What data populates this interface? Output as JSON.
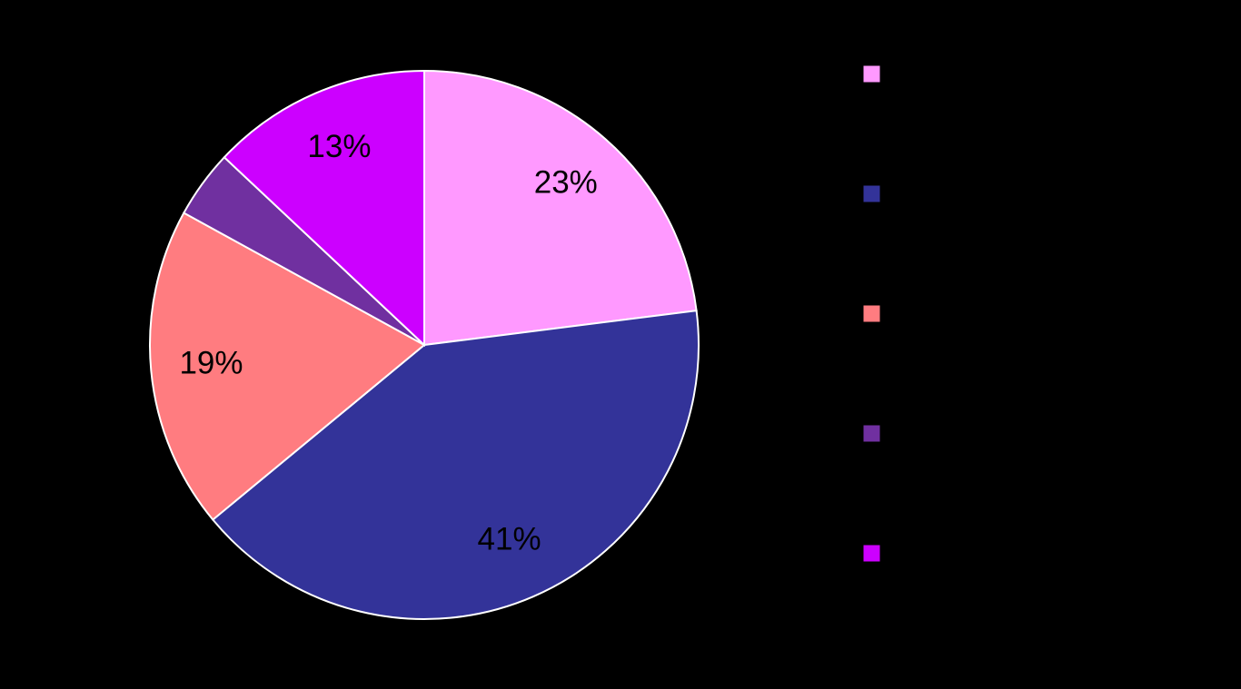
{
  "chart_data": {
    "type": "pie",
    "values": [
      23,
      41,
      19,
      4,
      13
    ],
    "value_labels": [
      "23%",
      "41%",
      "19%",
      null,
      "13%"
    ],
    "colors": [
      "#ff99ff",
      "#333399",
      "#ff7c80",
      "#7030a0",
      "#cc00ff"
    ]
  }
}
